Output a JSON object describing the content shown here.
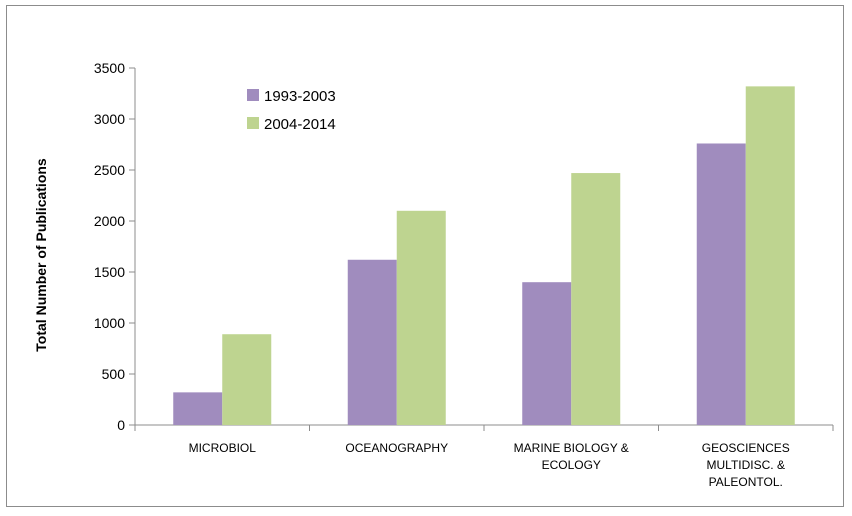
{
  "chart_data": {
    "type": "bar",
    "categories": [
      [
        "MICROBIOL"
      ],
      [
        "OCEANOGRAPHY"
      ],
      [
        "MARINE BIOLOGY &",
        "ECOLOGY"
      ],
      [
        "GEOSCIENCES",
        "MULTIDISC. &",
        "PALEONTOL."
      ]
    ],
    "series": [
      {
        "name": "1993-2003",
        "color": "#a08cbe",
        "values": [
          320,
          1620,
          1400,
          2760
        ]
      },
      {
        "name": "2004-2014",
        "color": "#bed490",
        "values": [
          890,
          2100,
          2470,
          3320
        ]
      }
    ],
    "xlabel": "",
    "ylabel": "Total Number of Publications",
    "ylim": [
      0,
      3500
    ],
    "yticks": [
      0,
      500,
      1000,
      1500,
      2000,
      2500,
      3000,
      3500
    ],
    "legend_position": "top-left",
    "grid": false
  }
}
